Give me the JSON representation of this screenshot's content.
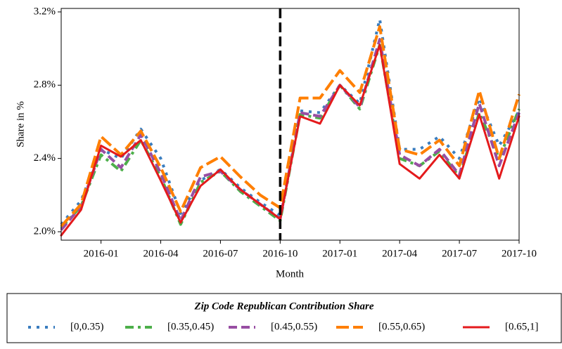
{
  "chart_data": {
    "type": "line",
    "x_label": "Month",
    "y_label": "Share in %",
    "x": [
      "2015-11",
      "2015-12",
      "2016-01",
      "2016-02",
      "2016-03",
      "2016-04",
      "2016-05",
      "2016-06",
      "2016-07",
      "2016-08",
      "2016-09",
      "2016-10",
      "2016-11",
      "2016-12",
      "2017-01",
      "2017-02",
      "2017-03",
      "2017-04",
      "2017-05",
      "2017-06",
      "2017-07",
      "2017-08",
      "2017-09",
      "2017-10"
    ],
    "xlim": [
      "2015-11",
      "2017-10"
    ],
    "xticks": [
      "2016-01",
      "2016-04",
      "2016-07",
      "2016-10",
      "2017-01",
      "2017-04",
      "2017-07",
      "2017-10"
    ],
    "ylim": [
      1.954,
      3.219
    ],
    "yticks": [
      {
        "value": 2.0,
        "label": "2.0%"
      },
      {
        "value": 2.4,
        "label": "2.4%"
      },
      {
        "value": 2.8,
        "label": "2.8%"
      },
      {
        "value": 3.2,
        "label": "3.2%"
      }
    ],
    "vline": "2016-10",
    "legend_title": "Zip Code Republican Contribution Share",
    "legend_position": "bottom",
    "series": [
      {
        "name": "[0,0.35)",
        "color": "#3a7dbf",
        "style": "dotted",
        "values": [
          2.04,
          2.17,
          2.45,
          2.4,
          2.56,
          2.4,
          2.1,
          2.28,
          2.34,
          2.24,
          2.16,
          2.09,
          2.66,
          2.65,
          2.8,
          2.7,
          3.16,
          2.45,
          2.45,
          2.52,
          2.4,
          2.73,
          2.47,
          2.66
        ]
      },
      {
        "name": "[0.35,0.45)",
        "color": "#4daf4a",
        "style": "dashdot",
        "values": [
          2.02,
          2.14,
          2.42,
          2.33,
          2.5,
          2.3,
          2.04,
          2.27,
          2.33,
          2.22,
          2.14,
          2.06,
          2.64,
          2.62,
          2.8,
          2.67,
          3.02,
          2.4,
          2.36,
          2.44,
          2.3,
          2.65,
          2.4,
          2.67
        ]
      },
      {
        "name": "[0.45,0.55)",
        "color": "#984ea3",
        "style": "dashed",
        "values": [
          2.01,
          2.14,
          2.45,
          2.35,
          2.53,
          2.32,
          2.06,
          2.3,
          2.33,
          2.23,
          2.15,
          2.07,
          2.65,
          2.63,
          2.8,
          2.68,
          3.05,
          2.42,
          2.36,
          2.45,
          2.31,
          2.7,
          2.36,
          2.65
        ]
      },
      {
        "name": "[0.55,0.65)",
        "color": "#ff7f00",
        "style": "longdash",
        "values": [
          2.03,
          2.15,
          2.52,
          2.42,
          2.55,
          2.35,
          2.11,
          2.35,
          2.41,
          2.3,
          2.2,
          2.13,
          2.73,
          2.73,
          2.88,
          2.76,
          3.12,
          2.45,
          2.42,
          2.5,
          2.36,
          2.77,
          2.4,
          2.75
        ]
      },
      {
        "name": "[0.65,1]",
        "color": "#e41a1c",
        "style": "solid",
        "values": [
          1.98,
          2.12,
          2.47,
          2.41,
          2.5,
          2.28,
          2.05,
          2.25,
          2.34,
          2.23,
          2.15,
          2.07,
          2.63,
          2.59,
          2.8,
          2.69,
          3.02,
          2.37,
          2.29,
          2.42,
          2.29,
          2.64,
          2.29,
          2.63
        ]
      }
    ]
  }
}
